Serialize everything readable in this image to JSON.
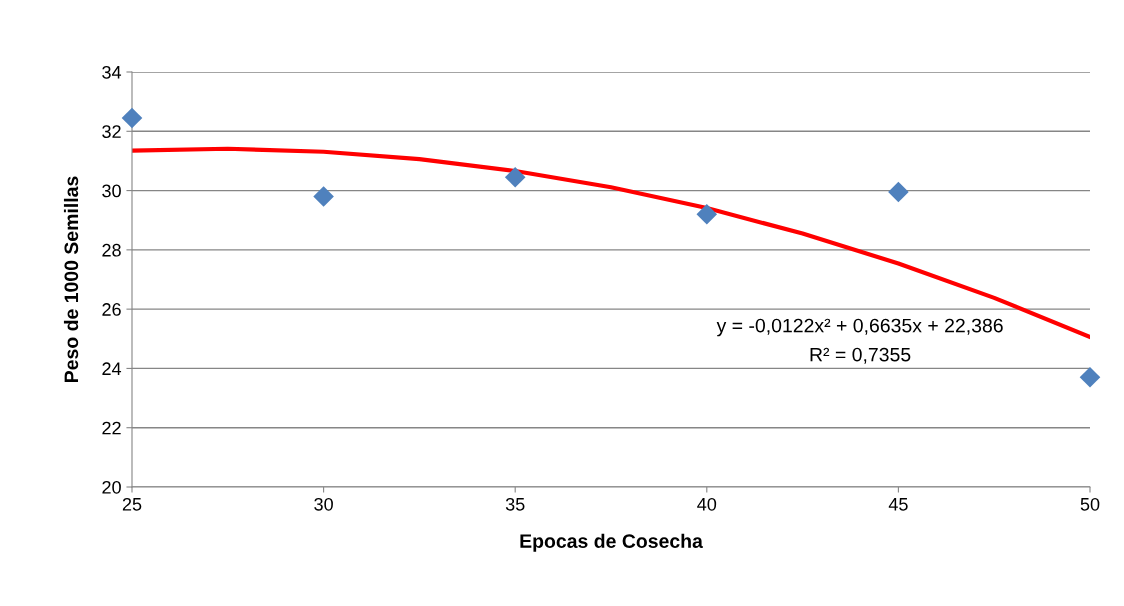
{
  "chart_data": {
    "type": "scatter",
    "xlabel": "Epocas de Cosecha",
    "ylabel": "Peso de 1000 Semillas",
    "xlim": [
      25,
      50
    ],
    "xticks": [
      25,
      30,
      35,
      40,
      45,
      50
    ],
    "ylim": [
      20,
      34
    ],
    "yticks": [
      20,
      22,
      24,
      26,
      28,
      30,
      32,
      34
    ],
    "grid": "y",
    "marker": "diamond",
    "series": [
      {
        "color": "#4f81bd",
        "x": [
          25,
          30,
          35,
          40,
          45,
          50
        ],
        "values": [
          32.45,
          29.8,
          30.45,
          29.2,
          29.95,
          23.7
        ]
      },
      {
        "type": "line",
        "color": "#ff0000",
        "line_style": "solid",
        "marker": "none",
        "x": [
          25,
          27.5,
          30,
          32.5,
          35,
          37.5,
          40,
          42.5,
          45,
          47.5,
          50
        ],
        "values": [
          31.35,
          31.41,
          31.31,
          31.06,
          30.66,
          30.11,
          29.41,
          28.55,
          27.54,
          26.38,
          25.06
        ]
      }
    ],
    "annotations": [
      "y = -0,0122x² + 0,6635x + 22,386",
      "R² = 0,7355"
    ]
  }
}
